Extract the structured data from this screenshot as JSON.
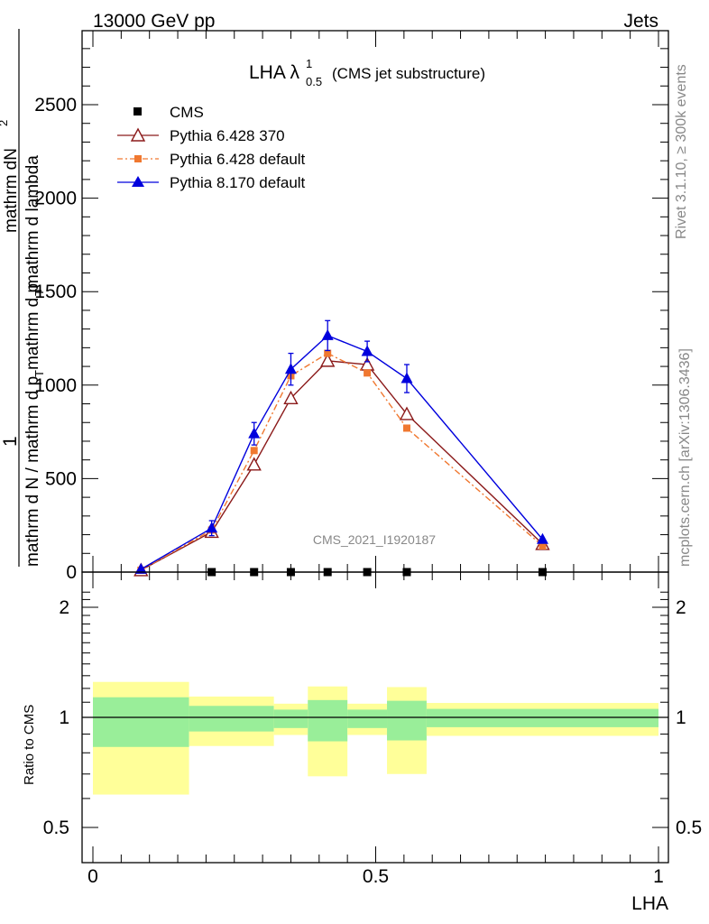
{
  "header": {
    "left": "13000 GeV pp",
    "right": "Jets"
  },
  "side_labels": {
    "rivet": "Rivet 3.1.10, ≥ 300k events",
    "mcplots": "mcplots.cern.ch [arXiv:1306.3436]"
  },
  "chart_data": [
    {
      "type": "line",
      "title_main": "LHA λ",
      "title_sup": "1",
      "title_sub": "0.5",
      "title_tail": "(CMS jet substructure)",
      "watermark": "CMS_2021_I1920187",
      "ylabel_num": "1",
      "ylabel_frac_top": "mathrm d",
      "ylabel_frac_topsup": "2",
      "ylabel_frac_top2": "N",
      "ylabel_lines": [
        "mathrm d N / mathrm d p",
        "T",
        "mathrm d p",
        "T",
        " mathrm d lambda",
        "mathrm dN",
        "mathrm d p"
      ],
      "xlim": [
        0,
        1
      ],
      "ylim": [
        0,
        2900
      ],
      "y_ticks": [
        0,
        500,
        1000,
        1500,
        2000,
        2500
      ],
      "y_tick_labels": [
        "0",
        "500",
        "1000",
        "1500",
        "2000",
        "2500"
      ],
      "series": [
        {
          "name": "CMS",
          "color": "#000000",
          "marker": "square",
          "x": [
            0.21,
            0.285,
            0.35,
            0.415,
            0.485,
            0.555,
            0.795
          ],
          "y": [
            0,
            0,
            0,
            0,
            0,
            0,
            0
          ]
        },
        {
          "name": "Pythia 6.428 370",
          "color": "#8b1a1a",
          "marker": "open-triangle",
          "x": [
            0.085,
            0.21,
            0.285,
            0.35,
            0.415,
            0.485,
            0.555,
            0.795
          ],
          "y": [
            10,
            215,
            575,
            930,
            1130,
            1110,
            845,
            150
          ],
          "err": [
            0,
            0,
            0,
            0,
            0,
            0,
            0,
            0
          ]
        },
        {
          "name": "Pythia 6.428 default",
          "color": "#f07830",
          "marker": "filled-square",
          "x": [
            0.085,
            0.21,
            0.285,
            0.35,
            0.415,
            0.485,
            0.555,
            0.795
          ],
          "y": [
            10,
            225,
            650,
            1050,
            1170,
            1065,
            770,
            140
          ],
          "err": [
            0,
            0,
            0,
            0,
            0,
            0,
            0,
            0
          ]
        },
        {
          "name": "Pythia 8.170 default",
          "color": "#0000dd",
          "marker": "filled-triangle",
          "x": [
            0.085,
            0.21,
            0.285,
            0.35,
            0.415,
            0.485,
            0.555,
            0.795
          ],
          "y": [
            15,
            235,
            740,
            1085,
            1265,
            1180,
            1035,
            175
          ],
          "err": [
            0,
            40,
            60,
            85,
            80,
            55,
            75,
            0
          ]
        }
      ]
    },
    {
      "type": "area",
      "ylabel": "Ratio to CMS",
      "xlabel": "LHA",
      "xlim": [
        0,
        1
      ],
      "ylim": [
        0.38,
        2.3
      ],
      "x_ticks": [
        0,
        0.5,
        1
      ],
      "x_tick_labels": [
        "0",
        "0.5",
        "1"
      ],
      "y_ticks": [
        0.5,
        1,
        2
      ],
      "y_tick_labels": [
        "0.5",
        "1",
        "2"
      ],
      "reference_line": 1,
      "band_colors": {
        "outer": "#ffff99",
        "inner": "#99ee99"
      },
      "bins": [
        {
          "x0": 0.0,
          "x1": 0.17,
          "outer": [
            0.615,
            1.25
          ],
          "inner": [
            0.83,
            1.135
          ]
        },
        {
          "x0": 0.17,
          "x1": 0.32,
          "outer": [
            0.835,
            1.14
          ],
          "inner": [
            0.915,
            1.075
          ]
        },
        {
          "x0": 0.32,
          "x1": 0.38,
          "outer": [
            0.895,
            1.09
          ],
          "inner": [
            0.935,
            1.05
          ]
        },
        {
          "x0": 0.38,
          "x1": 0.45,
          "outer": [
            0.69,
            1.215
          ],
          "inner": [
            0.86,
            1.115
          ]
        },
        {
          "x0": 0.45,
          "x1": 0.52,
          "outer": [
            0.895,
            1.09
          ],
          "inner": [
            0.935,
            1.05
          ]
        },
        {
          "x0": 0.52,
          "x1": 0.59,
          "outer": [
            0.7,
            1.21
          ],
          "inner": [
            0.865,
            1.11
          ]
        },
        {
          "x0": 0.59,
          "x1": 1.0,
          "outer": [
            0.89,
            1.095
          ],
          "inner": [
            0.94,
            1.055
          ]
        }
      ]
    }
  ]
}
